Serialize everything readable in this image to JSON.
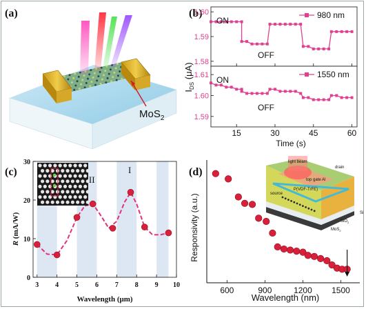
{
  "panel_a": {
    "label": "(a)",
    "material_label": "MoS",
    "material_sub": "2"
  },
  "chart_data": [
    {
      "panel": "(b)",
      "type": "line",
      "ylabel": "I",
      "ylabel_sub": "DS",
      "ylabel_unit": "(μA)",
      "xlabel": "Time (s)",
      "xticks": [
        15,
        30,
        45,
        60
      ],
      "xlim": [
        5,
        62
      ],
      "subplots": [
        {
          "legend": "980 nm",
          "ylim": [
            1.578,
            1.602
          ],
          "yticks": [
            1.58,
            1.59,
            1.6
          ],
          "on_label": "ON",
          "off_label": "OFF",
          "series": [
            {
              "x": [
                5,
                7,
                9,
                11,
                13,
                15,
                17
              ],
              "y": [
                1.596,
                1.596,
                1.596,
                1.596,
                1.596,
                1.596,
                1.596
              ]
            },
            {
              "x": [
                17,
                19,
                21,
                23,
                25,
                27
              ],
              "y": [
                1.588,
                1.588,
                1.587,
                1.587,
                1.587,
                1.587
              ]
            },
            {
              "x": [
                28,
                30,
                32,
                34,
                36,
                38,
                40
              ],
              "y": [
                1.595,
                1.595,
                1.595,
                1.595,
                1.595,
                1.595,
                1.595
              ]
            },
            {
              "x": [
                41,
                43,
                45,
                47,
                49,
                51
              ],
              "y": [
                1.586,
                1.586,
                1.585,
                1.585,
                1.585,
                1.585
              ]
            },
            {
              "x": [
                52,
                54,
                56,
                58,
                60
              ],
              "y": [
                1.592,
                1.592,
                1.592,
                1.592,
                1.592
              ]
            }
          ],
          "color": "#e0408f"
        },
        {
          "legend": "1550 nm",
          "ylim": [
            1.585,
            1.614
          ],
          "yticks": [
            1.59,
            1.6,
            1.61
          ],
          "on_label": "ON",
          "off_label": "OFF",
          "series": [
            {
              "x": [
                5,
                7,
                9,
                11,
                13,
                15,
                17
              ],
              "y": [
                1.606,
                1.605,
                1.605,
                1.604,
                1.604,
                1.603,
                1.603
              ]
            },
            {
              "x": [
                17,
                19,
                21,
                23,
                25,
                27
              ],
              "y": [
                1.602,
                1.601,
                1.601,
                1.601,
                1.601,
                1.601
              ]
            },
            {
              "x": [
                28,
                30,
                32,
                34,
                36,
                38,
                40
              ],
              "y": [
                1.603,
                1.603,
                1.602,
                1.602,
                1.602,
                1.602,
                1.601
              ]
            },
            {
              "x": [
                41,
                43,
                45,
                47,
                49,
                51
              ],
              "y": [
                1.599,
                1.599,
                1.598,
                1.598,
                1.598,
                1.598
              ]
            },
            {
              "x": [
                52,
                54,
                56,
                58,
                60
              ],
              "y": [
                1.6,
                1.6,
                1.599,
                1.599,
                1.599
              ]
            }
          ],
          "color": "#e0408f"
        }
      ]
    },
    {
      "panel": "(c)",
      "type": "scatter",
      "xlabel": "Wavelength (μm)",
      "ylabel": "R",
      "ylabel_unit": "(mA/W)",
      "xlim": [
        2.8,
        10
      ],
      "ylim": [
        0,
        30
      ],
      "xticks": [
        3,
        4,
        5,
        6,
        7,
        8,
        9,
        10
      ],
      "yticks": [
        0,
        10,
        20,
        30
      ],
      "points": {
        "x": [
          3.0,
          4.0,
          5.0,
          5.8,
          6.8,
          7.7,
          8.4,
          9.6
        ],
        "y": [
          8.5,
          5.8,
          15.5,
          19.0,
          12.7,
          22.0,
          13.0,
          11.5
        ]
      },
      "fit_curve": {
        "x": [
          3.0,
          3.5,
          4.0,
          4.5,
          5.0,
          5.4,
          5.8,
          6.2,
          6.6,
          7.0,
          7.4,
          7.7,
          8.0,
          8.4,
          8.8,
          9.2,
          9.6
        ],
        "y": [
          8.5,
          6.0,
          5.8,
          9.5,
          15.5,
          18.5,
          19.0,
          16.0,
          12.7,
          14.5,
          19.5,
          22.0,
          19.0,
          13.0,
          11.0,
          11.0,
          11.5
        ]
      },
      "bands": [
        [
          3.0,
          4.0
        ],
        [
          5.0,
          6.0
        ],
        [
          7.0,
          8.0
        ],
        [
          9.0,
          9.6
        ]
      ],
      "peak_labels": [
        {
          "text": "II",
          "x": 5.75,
          "y": 24.5
        },
        {
          "text": "I",
          "x": 7.65,
          "y": 27.0
        }
      ],
      "color": "#d9203a",
      "band_color": "#dde7f4"
    },
    {
      "panel": "(d)",
      "type": "scatter",
      "xlabel": "Wavelength (nm)",
      "ylabel": "Responsivity (a.u.)",
      "xticks": [
        600,
        900,
        1200,
        1500
      ],
      "xlim": [
        440,
        1650
      ],
      "ylim": [
        0,
        1
      ],
      "points": {
        "x": [
          510,
          610,
          690,
          740,
          800,
          850,
          910,
          960,
          1000,
          1050,
          1100,
          1150,
          1200,
          1240,
          1290,
          1340,
          1390,
          1430,
          1470,
          1510,
          1550
        ],
        "y": [
          0.95,
          0.9,
          0.73,
          0.67,
          0.66,
          0.53,
          0.5,
          0.39,
          0.26,
          0.24,
          0.23,
          0.22,
          0.21,
          0.18,
          0.17,
          0.15,
          0.13,
          0.09,
          0.06,
          0.05,
          0.05
        ]
      },
      "color": "#d9203a",
      "inset_labels": {
        "light": "light beam",
        "drain": "drain",
        "gate": "top gate Al",
        "ferro": "P(VDF-TrFE)",
        "source": "source",
        "si": "Si",
        "sio2": "SiO",
        "sio2_sub": "2",
        "mos2": "MoS",
        "mos2_sub": "2"
      }
    }
  ]
}
